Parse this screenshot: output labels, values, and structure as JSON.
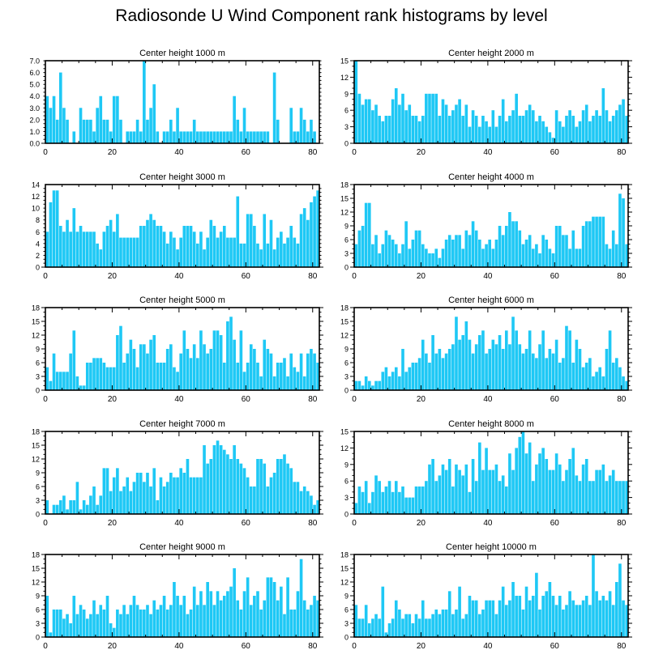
{
  "title": "Radiosonde U Wind Component rank histograms by level",
  "colors": {
    "bar": "#1ec8f5",
    "axis": "#000000",
    "background": "#ffffff"
  },
  "chart_data": [
    {
      "type": "bar",
      "title": "Center height 1000 m",
      "xlabel": "",
      "ylabel": "",
      "xlim": [
        0,
        82
      ],
      "ylim": [
        0,
        7
      ],
      "xticks": [
        0,
        20,
        40,
        60,
        80
      ],
      "yticks": [
        0,
        1,
        2,
        3,
        4,
        5,
        6,
        7
      ],
      "ytick_labels": [
        "0.0",
        "1.0",
        "2.0",
        "3.0",
        "4.0",
        "5.0",
        "6.0",
        "7.0"
      ],
      "values": [
        4,
        3,
        4,
        2,
        6,
        3,
        2,
        0,
        1,
        0,
        3,
        2,
        2,
        2,
        1,
        3,
        4,
        2,
        2,
        1,
        4,
        4,
        2,
        0,
        1,
        1,
        1,
        2,
        1,
        7,
        2,
        3,
        5,
        1,
        0,
        1,
        1,
        2,
        1,
        3,
        1,
        1,
        1,
        1,
        2,
        1,
        1,
        1,
        1,
        1,
        1,
        1,
        1,
        1,
        1,
        1,
        4,
        2,
        1,
        3,
        1,
        1,
        1,
        1,
        1,
        1,
        1,
        0,
        6,
        2,
        0,
        0,
        0,
        3,
        1,
        1,
        3,
        2,
        1,
        2,
        1,
        0
      ]
    },
    {
      "type": "bar",
      "title": "Center height 2000 m",
      "xlabel": "",
      "ylabel": "",
      "xlim": [
        0,
        82
      ],
      "ylim": [
        0,
        15
      ],
      "xticks": [
        0,
        20,
        40,
        60,
        80
      ],
      "yticks": [
        0,
        3,
        6,
        9,
        12,
        15
      ],
      "ytick_labels": [
        "0",
        "3",
        "6",
        "9",
        "12",
        "15"
      ],
      "values": [
        15,
        9,
        7,
        8,
        8,
        6,
        7,
        5,
        4,
        5,
        5,
        8,
        10,
        7,
        9,
        6,
        7,
        5,
        5,
        4,
        5,
        9,
        9,
        9,
        9,
        5,
        8,
        7,
        5,
        6,
        7,
        8,
        5,
        7,
        3,
        6,
        5,
        3,
        5,
        4,
        3,
        6,
        3,
        5,
        8,
        4,
        5,
        6,
        9,
        5,
        5,
        6,
        7,
        6,
        4,
        5,
        4,
        3,
        2,
        1,
        6,
        4,
        3,
        5,
        6,
        5,
        3,
        4,
        6,
        7,
        4,
        5,
        6,
        5,
        10,
        6,
        4,
        5,
        6,
        7,
        8,
        5
      ]
    },
    {
      "type": "bar",
      "title": "Center height 3000 m",
      "xlabel": "",
      "ylabel": "",
      "xlim": [
        0,
        82
      ],
      "ylim": [
        0,
        14
      ],
      "xticks": [
        0,
        20,
        40,
        60,
        80
      ],
      "yticks": [
        0,
        2,
        4,
        6,
        8,
        10,
        12,
        14
      ],
      "ytick_labels": [
        "0",
        "2",
        "4",
        "6",
        "8",
        "10",
        "12",
        "14"
      ],
      "values": [
        6,
        11,
        13,
        13,
        7,
        6,
        8,
        6,
        10,
        6,
        7,
        6,
        6,
        6,
        6,
        4,
        3,
        6,
        7,
        8,
        6,
        9,
        5,
        5,
        5,
        5,
        5,
        5,
        7,
        7,
        8,
        9,
        8,
        7,
        7,
        6,
        4,
        6,
        5,
        3,
        5,
        7,
        7,
        7,
        6,
        4,
        6,
        3,
        5,
        8,
        7,
        5,
        6,
        7,
        5,
        5,
        5,
        12,
        4,
        4,
        9,
        9,
        7,
        4,
        3,
        9,
        4,
        8,
        3,
        5,
        6,
        4,
        5,
        7,
        5,
        4,
        9,
        10,
        8,
        11,
        12,
        13
      ]
    },
    {
      "type": "bar",
      "title": "Center height 4000 m",
      "xlabel": "",
      "ylabel": "",
      "xlim": [
        0,
        82
      ],
      "ylim": [
        0,
        18
      ],
      "xticks": [
        0,
        20,
        40,
        60,
        80
      ],
      "yticks": [
        0,
        3,
        6,
        9,
        12,
        15,
        18
      ],
      "ytick_labels": [
        "0",
        "3",
        "6",
        "9",
        "12",
        "15",
        "18"
      ],
      "values": [
        5,
        8,
        9,
        14,
        14,
        5,
        7,
        3,
        5,
        8,
        7,
        6,
        5,
        3,
        5,
        10,
        4,
        6,
        8,
        8,
        5,
        4,
        3,
        3,
        4,
        2,
        4,
        6,
        7,
        6,
        7,
        7,
        4,
        8,
        7,
        10,
        8,
        6,
        4,
        5,
        6,
        4,
        6,
        9,
        7,
        9,
        12,
        10,
        10,
        8,
        5,
        6,
        7,
        4,
        5,
        3,
        7,
        6,
        4,
        3,
        9,
        9,
        7,
        7,
        4,
        8,
        4,
        4,
        9,
        10,
        10,
        11,
        11,
        11,
        11,
        5,
        4,
        8,
        5,
        16,
        15,
        5
      ]
    },
    {
      "type": "bar",
      "title": "Center height 5000 m",
      "xlabel": "",
      "ylabel": "",
      "xlim": [
        0,
        82
      ],
      "ylim": [
        0,
        18
      ],
      "xticks": [
        0,
        20,
        40,
        60,
        80
      ],
      "yticks": [
        0,
        3,
        6,
        9,
        12,
        15,
        18
      ],
      "ytick_labels": [
        "0",
        "3",
        "6",
        "9",
        "12",
        "15",
        "18"
      ],
      "values": [
        5,
        2,
        8,
        4,
        4,
        4,
        4,
        8,
        13,
        3,
        1,
        1,
        6,
        6,
        7,
        7,
        7,
        6,
        5,
        5,
        5,
        12,
        14,
        6,
        8,
        11,
        9,
        5,
        10,
        10,
        8,
        11,
        12,
        6,
        6,
        6,
        9,
        10,
        5,
        4,
        8,
        13,
        9,
        7,
        10,
        7,
        13,
        10,
        8,
        9,
        13,
        13,
        12,
        6,
        15,
        16,
        11,
        6,
        13,
        4,
        6,
        10,
        9,
        6,
        3,
        11,
        9,
        8,
        3,
        6,
        6,
        7,
        3,
        8,
        5,
        4,
        8,
        3,
        8,
        9,
        8,
        6
      ]
    },
    {
      "type": "bar",
      "title": "Center height 6000 m",
      "xlabel": "",
      "ylabel": "",
      "xlim": [
        0,
        82
      ],
      "ylim": [
        0,
        18
      ],
      "xticks": [
        0,
        20,
        40,
        60,
        80
      ],
      "yticks": [
        0,
        3,
        6,
        9,
        12,
        15,
        18
      ],
      "ytick_labels": [
        "0",
        "3",
        "6",
        "9",
        "12",
        "15",
        "18"
      ],
      "values": [
        2,
        2,
        1,
        3,
        2,
        1,
        2,
        2,
        4,
        5,
        3,
        4,
        5,
        3,
        9,
        4,
        5,
        6,
        6,
        7,
        11,
        8,
        6,
        12,
        8,
        9,
        7,
        8,
        9,
        10,
        16,
        11,
        12,
        15,
        11,
        8,
        10,
        12,
        13,
        8,
        9,
        11,
        10,
        12,
        9,
        13,
        10,
        16,
        13,
        10,
        8,
        9,
        13,
        8,
        7,
        10,
        13,
        7,
        9,
        8,
        11,
        6,
        7,
        14,
        13,
        6,
        11,
        9,
        5,
        6,
        7,
        3,
        4,
        5,
        3,
        9,
        13,
        6,
        7,
        5,
        3,
        2
      ]
    },
    {
      "type": "bar",
      "title": "Center height 7000 m",
      "xlabel": "",
      "ylabel": "",
      "xlim": [
        0,
        82
      ],
      "ylim": [
        0,
        18
      ],
      "xticks": [
        0,
        20,
        40,
        60,
        80
      ],
      "yticks": [
        0,
        3,
        6,
        9,
        12,
        15,
        18
      ],
      "ytick_labels": [
        "0",
        "3",
        "6",
        "9",
        "12",
        "15",
        "18"
      ],
      "values": [
        3,
        0,
        2,
        2,
        3,
        4,
        1,
        3,
        3,
        7,
        1,
        3,
        2,
        4,
        6,
        2,
        4,
        10,
        10,
        5,
        8,
        10,
        5,
        6,
        8,
        5,
        7,
        9,
        9,
        7,
        9,
        6,
        10,
        3,
        8,
        6,
        7,
        9,
        8,
        8,
        10,
        9,
        12,
        8,
        8,
        8,
        8,
        15,
        11,
        12,
        15,
        16,
        15,
        14,
        13,
        12,
        15,
        12,
        11,
        10,
        8,
        6,
        6,
        12,
        12,
        11,
        6,
        8,
        9,
        12,
        12,
        13,
        11,
        10,
        7,
        7,
        5,
        6,
        5,
        4,
        2,
        3
      ]
    },
    {
      "type": "bar",
      "title": "Center height 8000 m",
      "xlabel": "",
      "ylabel": "",
      "xlim": [
        0,
        82
      ],
      "ylim": [
        0,
        15
      ],
      "xticks": [
        0,
        20,
        40,
        60,
        80
      ],
      "yticks": [
        0,
        3,
        6,
        9,
        12,
        15
      ],
      "ytick_labels": [
        "0",
        "3",
        "6",
        "9",
        "12",
        "15"
      ],
      "values": [
        2,
        5,
        4,
        6,
        2,
        4,
        7,
        6,
        4,
        5,
        6,
        4,
        6,
        4,
        5,
        3,
        3,
        3,
        5,
        5,
        5,
        6,
        9,
        10,
        6,
        7,
        9,
        8,
        10,
        5,
        9,
        8,
        7,
        9,
        4,
        10,
        6,
        13,
        8,
        12,
        8,
        8,
        9,
        6,
        7,
        5,
        11,
        8,
        12,
        14,
        15,
        11,
        13,
        6,
        9,
        11,
        12,
        10,
        8,
        8,
        11,
        9,
        6,
        8,
        10,
        12,
        7,
        6,
        9,
        10,
        6,
        6,
        8,
        8,
        9,
        6,
        7,
        8,
        6,
        6,
        6,
        6
      ]
    },
    {
      "type": "bar",
      "title": "Center height 9000 m",
      "xlabel": "",
      "ylabel": "",
      "xlim": [
        0,
        82
      ],
      "ylim": [
        0,
        18
      ],
      "xticks": [
        0,
        20,
        40,
        60,
        80
      ],
      "yticks": [
        0,
        3,
        6,
        9,
        12,
        15,
        18
      ],
      "ytick_labels": [
        "0",
        "3",
        "6",
        "9",
        "12",
        "15",
        "18"
      ],
      "values": [
        9,
        1,
        6,
        6,
        6,
        4,
        5,
        3,
        9,
        5,
        7,
        6,
        4,
        5,
        8,
        5,
        7,
        6,
        9,
        3,
        2,
        6,
        5,
        7,
        5,
        7,
        9,
        7,
        6,
        6,
        7,
        5,
        8,
        6,
        7,
        9,
        6,
        7,
        12,
        9,
        7,
        9,
        5,
        6,
        11,
        7,
        10,
        7,
        12,
        10,
        7,
        10,
        8,
        9,
        10,
        11,
        15,
        8,
        6,
        10,
        13,
        7,
        9,
        10,
        6,
        8,
        13,
        13,
        12,
        8,
        11,
        5,
        13,
        6,
        6,
        10,
        17,
        8,
        6,
        7,
        9,
        8
      ]
    },
    {
      "type": "bar",
      "title": "Center height 10000 m",
      "xlabel": "",
      "ylabel": "",
      "xlim": [
        0,
        82
      ],
      "ylim": [
        0,
        18
      ],
      "xticks": [
        0,
        20,
        40,
        60,
        80
      ],
      "yticks": [
        0,
        3,
        6,
        9,
        12,
        15,
        18
      ],
      "ytick_labels": [
        "0",
        "3",
        "6",
        "9",
        "12",
        "15",
        "18"
      ],
      "values": [
        7,
        4,
        4,
        7,
        3,
        4,
        5,
        4,
        11,
        1,
        3,
        4,
        8,
        6,
        4,
        5,
        5,
        3,
        5,
        4,
        8,
        4,
        4,
        5,
        6,
        5,
        6,
        6,
        10,
        5,
        6,
        11,
        4,
        5,
        9,
        8,
        8,
        5,
        6,
        8,
        8,
        8,
        5,
        8,
        11,
        7,
        8,
        12,
        9,
        9,
        6,
        11,
        8,
        9,
        14,
        6,
        9,
        10,
        12,
        9,
        7,
        9,
        6,
        7,
        10,
        8,
        7,
        7,
        8,
        9,
        7,
        18,
        10,
        8,
        9,
        8,
        10,
        7,
        12,
        16,
        8,
        7
      ]
    }
  ]
}
